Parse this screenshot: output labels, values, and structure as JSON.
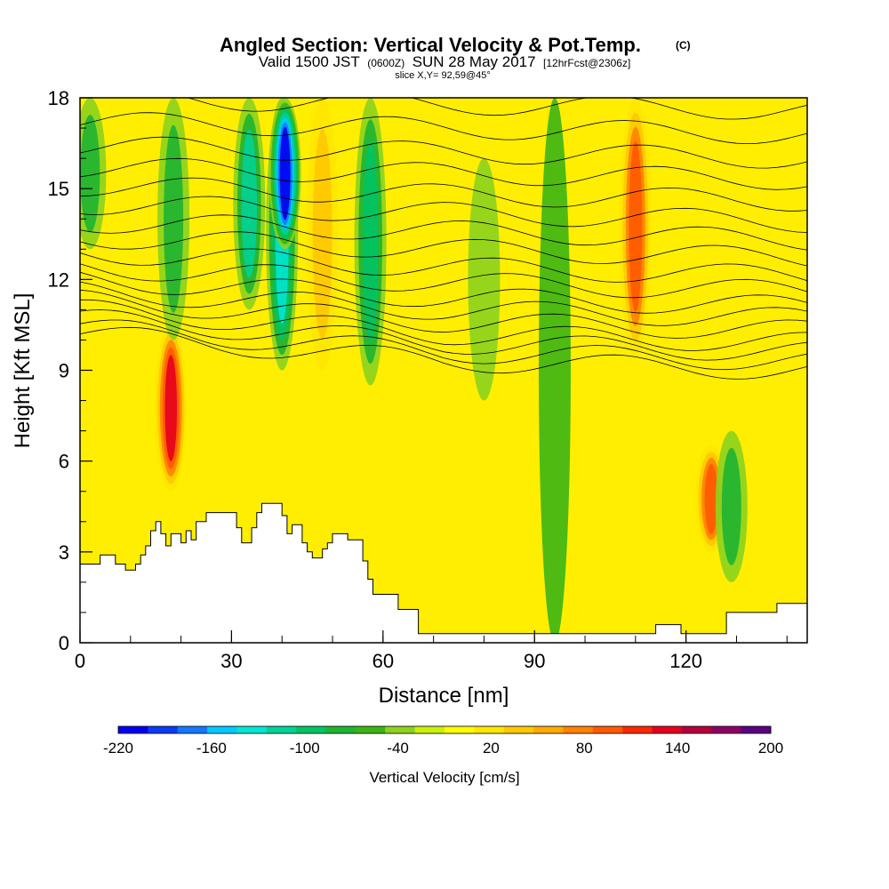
{
  "chart_data": {
    "type": "heatmap",
    "title": "Angled Section: Vertical Velocity & Pot.Temp.",
    "title_units": "(C)",
    "subtitle": {
      "valid": "Valid 1500 JST",
      "utc": "(0600Z)",
      "date": "SUN 28 May 2017",
      "forecast": "[12hrFcst@2306z]"
    },
    "slice_info": "slice X,Y= 92,59@45°",
    "xlabel": "Distance [nm]",
    "ylabel": "Height [Kft MSL]",
    "xlim": [
      0,
      144
    ],
    "ylim": [
      0,
      18
    ],
    "x_ticks": [
      0,
      30,
      60,
      90,
      120
    ],
    "y_ticks": [
      0,
      3,
      6,
      9,
      12,
      15,
      18
    ],
    "grid": false,
    "colorbar": {
      "label": "Vertical Velocity [cm/s]",
      "tick_labels": [
        "-220",
        "-160",
        "-100",
        "-40",
        "20",
        "80",
        "140",
        "200"
      ],
      "tick_values": [
        -220,
        -160,
        -100,
        -40,
        20,
        80,
        140,
        200
      ],
      "levels": [
        -220,
        -200,
        -180,
        -160,
        -140,
        -120,
        -100,
        -80,
        -60,
        -40,
        -20,
        0,
        20,
        40,
        60,
        80,
        100,
        120,
        140,
        160,
        180,
        200
      ],
      "colors": [
        "#0000ee",
        "#0a3cf5",
        "#1478ff",
        "#00c8ff",
        "#00e6d2",
        "#00d296",
        "#00c364",
        "#1eb432",
        "#3cb414",
        "#8cd21e",
        "#c8f00a",
        "#ffff00",
        "#ffe600",
        "#ffc800",
        "#ffaa00",
        "#ff8200",
        "#ff5a00",
        "#ff2800",
        "#e6001e",
        "#b4003c",
        "#8c0064",
        "#5a0082"
      ]
    },
    "terrain_top_kft": [
      [
        0,
        2.6
      ],
      [
        4,
        2.6
      ],
      [
        4,
        2.9
      ],
      [
        7,
        2.9
      ],
      [
        7,
        2.6
      ],
      [
        9,
        2.6
      ],
      [
        9,
        2.4
      ],
      [
        11,
        2.4
      ],
      [
        11,
        2.6
      ],
      [
        12,
        2.6
      ],
      [
        12,
        2.9
      ],
      [
        13,
        2.9
      ],
      [
        13,
        3.2
      ],
      [
        14,
        3.2
      ],
      [
        14,
        3.7
      ],
      [
        15,
        3.7
      ],
      [
        15,
        4.0
      ],
      [
        16,
        4.0
      ],
      [
        16,
        3.6
      ],
      [
        17,
        3.6
      ],
      [
        17,
        3.2
      ],
      [
        18,
        3.2
      ],
      [
        18,
        3.6
      ],
      [
        20,
        3.6
      ],
      [
        20,
        3.3
      ],
      [
        21,
        3.3
      ],
      [
        21,
        3.7
      ],
      [
        22,
        3.7
      ],
      [
        22,
        3.4
      ],
      [
        23,
        3.4
      ],
      [
        23,
        4.0
      ],
      [
        25,
        4.0
      ],
      [
        25,
        4.3
      ],
      [
        31,
        4.3
      ],
      [
        31,
        3.8
      ],
      [
        32,
        3.8
      ],
      [
        32,
        3.3
      ],
      [
        34,
        3.3
      ],
      [
        34,
        3.8
      ],
      [
        35,
        3.8
      ],
      [
        35,
        4.3
      ],
      [
        36,
        4.3
      ],
      [
        36,
        4.6
      ],
      [
        40,
        4.6
      ],
      [
        40,
        4.2
      ],
      [
        41,
        4.2
      ],
      [
        41,
        3.6
      ],
      [
        42,
        3.6
      ],
      [
        42,
        3.9
      ],
      [
        44,
        3.9
      ],
      [
        44,
        3.3
      ],
      [
        45,
        3.3
      ],
      [
        45,
        3.0
      ],
      [
        46,
        3.0
      ],
      [
        46,
        2.8
      ],
      [
        48,
        2.8
      ],
      [
        48,
        3.1
      ],
      [
        49,
        3.1
      ],
      [
        49,
        3.3
      ],
      [
        50,
        3.3
      ],
      [
        50,
        3.6
      ],
      [
        53,
        3.6
      ],
      [
        53,
        3.4
      ],
      [
        56,
        3.4
      ],
      [
        56,
        2.7
      ],
      [
        57,
        2.7
      ],
      [
        57,
        2.1
      ],
      [
        58,
        2.1
      ],
      [
        58,
        1.6
      ],
      [
        63,
        1.6
      ],
      [
        63,
        1.1
      ],
      [
        67,
        1.1
      ],
      [
        67,
        0.3
      ],
      [
        114,
        0.3
      ],
      [
        114,
        0.6
      ],
      [
        119,
        0.6
      ],
      [
        119,
        0.3
      ],
      [
        128,
        0.3
      ],
      [
        128,
        1.0
      ],
      [
        138,
        1.0
      ],
      [
        138,
        1.3
      ],
      [
        144,
        1.3
      ]
    ],
    "vertical_velocity_features": [
      {
        "x": 2,
        "z": [
          13,
          18
        ],
        "w": -60
      },
      {
        "x": 18,
        "z": [
          5.0,
          10.5
        ],
        "w": 150
      },
      {
        "x": 18.5,
        "z": [
          10,
          18
        ],
        "w": -70
      },
      {
        "x": 33.5,
        "z": [
          11,
          18
        ],
        "w": -100
      },
      {
        "x": 40,
        "z": [
          9,
          18
        ],
        "w": -130
      },
      {
        "x": 40.6,
        "z": [
          13,
          18
        ],
        "w": -200
      },
      {
        "x": 48,
        "z": [
          9,
          18
        ],
        "w": 60
      },
      {
        "x": 57.5,
        "z": [
          8.5,
          18
        ],
        "w": -90
      },
      {
        "x": 80,
        "z": [
          8,
          16
        ],
        "w": -30
      },
      {
        "x": 94,
        "z": [
          0,
          18
        ],
        "w": -40
      },
      {
        "x": 110,
        "z": [
          9.5,
          18
        ],
        "w": 110
      },
      {
        "x": 125,
        "z": [
          3,
          6.5
        ],
        "w": 110
      },
      {
        "x": 129,
        "z": [
          2,
          7
        ],
        "w": -70
      }
    ],
    "pot_temp_contours_kft": [
      [
        10.2,
        10.4,
        10.7,
        11.0,
        11.3,
        11.6,
        12.0,
        12.4,
        12.9,
        13.4,
        13.9,
        14.5,
        15.1,
        15.7,
        16.4,
        17.2,
        18.0
      ],
      [
        9.3,
        9.6,
        9.9,
        10.2,
        10.6,
        11.0,
        11.4,
        11.9,
        12.4,
        13.0,
        13.6,
        14.2,
        14.8,
        15.5,
        16.2,
        17.0,
        17.8
      ],
      [
        9.0,
        9.3,
        9.6,
        9.9,
        10.3,
        10.7,
        11.1,
        11.6,
        12.1,
        12.7,
        13.3,
        13.9,
        14.6,
        15.3,
        16.0,
        16.8,
        17.6
      ]
    ]
  }
}
